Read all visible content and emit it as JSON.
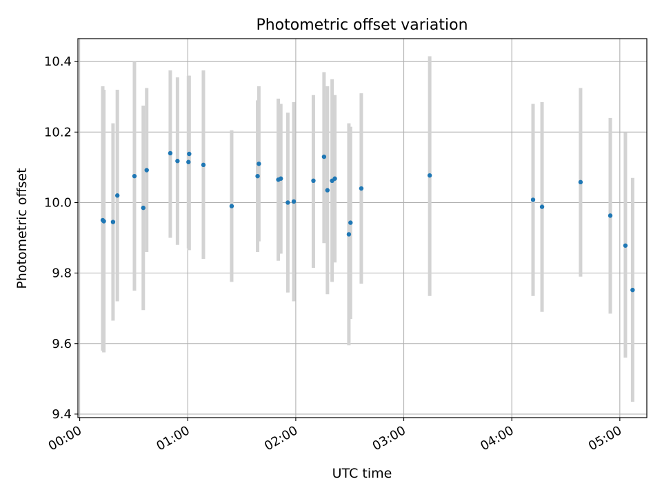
{
  "chart_data": {
    "type": "scatter",
    "title": "Photometric offset variation",
    "xlabel": "UTC time",
    "ylabel": "Photometric offset",
    "x_unit": "minutes after 00:00 UTC",
    "xlim": [
      -1,
      315
    ],
    "ylim": [
      9.39,
      10.465
    ],
    "xticks": [
      {
        "value": 0,
        "label": "00:00"
      },
      {
        "value": 60,
        "label": "01:00"
      },
      {
        "value": 120,
        "label": "02:00"
      },
      {
        "value": 180,
        "label": "03:00"
      },
      {
        "value": 240,
        "label": "04:00"
      },
      {
        "value": 300,
        "label": "05:00"
      }
    ],
    "yticks": [
      {
        "value": 9.4,
        "label": "9.4"
      },
      {
        "value": 9.6,
        "label": "9.6"
      },
      {
        "value": 9.8,
        "label": "9.8"
      },
      {
        "value": 10.0,
        "label": "10.0"
      },
      {
        "value": 10.2,
        "label": "10.2"
      },
      {
        "value": 10.4,
        "label": "10.4"
      }
    ],
    "grid": true,
    "marker_color": "#1f77b4",
    "errorbar_color": "#d3d3d3",
    "points": [
      {
        "x": 12.8,
        "y": 9.95,
        "low": 9.58,
        "high": 10.33
      },
      {
        "x": 13.4,
        "y": 9.947,
        "low": 9.575,
        "high": 10.32
      },
      {
        "x": 18.5,
        "y": 9.945,
        "low": 9.665,
        "high": 10.225
      },
      {
        "x": 20.9,
        "y": 10.02,
        "low": 9.72,
        "high": 10.32
      },
      {
        "x": 30.4,
        "y": 10.075,
        "low": 9.75,
        "high": 10.4
      },
      {
        "x": 35.3,
        "y": 9.985,
        "low": 9.695,
        "high": 10.275
      },
      {
        "x": 37.2,
        "y": 10.092,
        "low": 9.86,
        "high": 10.325
      },
      {
        "x": 50.3,
        "y": 10.14,
        "low": 9.9,
        "high": 10.375
      },
      {
        "x": 54.3,
        "y": 10.118,
        "low": 9.88,
        "high": 10.355
      },
      {
        "x": 60.4,
        "y": 10.115,
        "low": 9.87,
        "high": 10.36
      },
      {
        "x": 60.8,
        "y": 10.138,
        "low": 9.865,
        "high": 10.36
      },
      {
        "x": 68.7,
        "y": 10.107,
        "low": 9.84,
        "high": 10.375
      },
      {
        "x": 84.4,
        "y": 9.99,
        "low": 9.775,
        "high": 10.205
      },
      {
        "x": 98.8,
        "y": 10.075,
        "low": 9.86,
        "high": 10.29
      },
      {
        "x": 99.5,
        "y": 10.11,
        "low": 9.89,
        "high": 10.33
      },
      {
        "x": 110.3,
        "y": 10.065,
        "low": 9.835,
        "high": 10.295
      },
      {
        "x": 111.7,
        "y": 10.068,
        "low": 9.855,
        "high": 10.28
      },
      {
        "x": 115.6,
        "y": 10.0,
        "low": 9.745,
        "high": 10.255
      },
      {
        "x": 118.9,
        "y": 10.003,
        "low": 9.72,
        "high": 10.285
      },
      {
        "x": 129.8,
        "y": 10.062,
        "low": 9.815,
        "high": 10.305
      },
      {
        "x": 135.7,
        "y": 10.13,
        "low": 9.885,
        "high": 10.37
      },
      {
        "x": 137.6,
        "y": 10.035,
        "low": 9.74,
        "high": 10.33
      },
      {
        "x": 140.2,
        "y": 10.062,
        "low": 9.775,
        "high": 10.35
      },
      {
        "x": 141.7,
        "y": 10.068,
        "low": 9.83,
        "high": 10.305
      },
      {
        "x": 149.5,
        "y": 9.91,
        "low": 9.595,
        "high": 10.225
      },
      {
        "x": 150.4,
        "y": 9.943,
        "low": 9.67,
        "high": 10.215
      },
      {
        "x": 156.4,
        "y": 10.04,
        "low": 9.77,
        "high": 10.31
      },
      {
        "x": 194.4,
        "y": 10.077,
        "low": 9.735,
        "high": 10.415
      },
      {
        "x": 251.8,
        "y": 10.008,
        "low": 9.735,
        "high": 10.28
      },
      {
        "x": 256.8,
        "y": 9.988,
        "low": 9.69,
        "high": 10.285
      },
      {
        "x": 278.2,
        "y": 10.058,
        "low": 9.79,
        "high": 10.325
      },
      {
        "x": 294.7,
        "y": 9.963,
        "low": 9.685,
        "high": 10.24
      },
      {
        "x": 303.1,
        "y": 9.878,
        "low": 9.56,
        "high": 10.2
      },
      {
        "x": 307.1,
        "y": 9.752,
        "low": 9.435,
        "high": 10.07
      }
    ]
  }
}
